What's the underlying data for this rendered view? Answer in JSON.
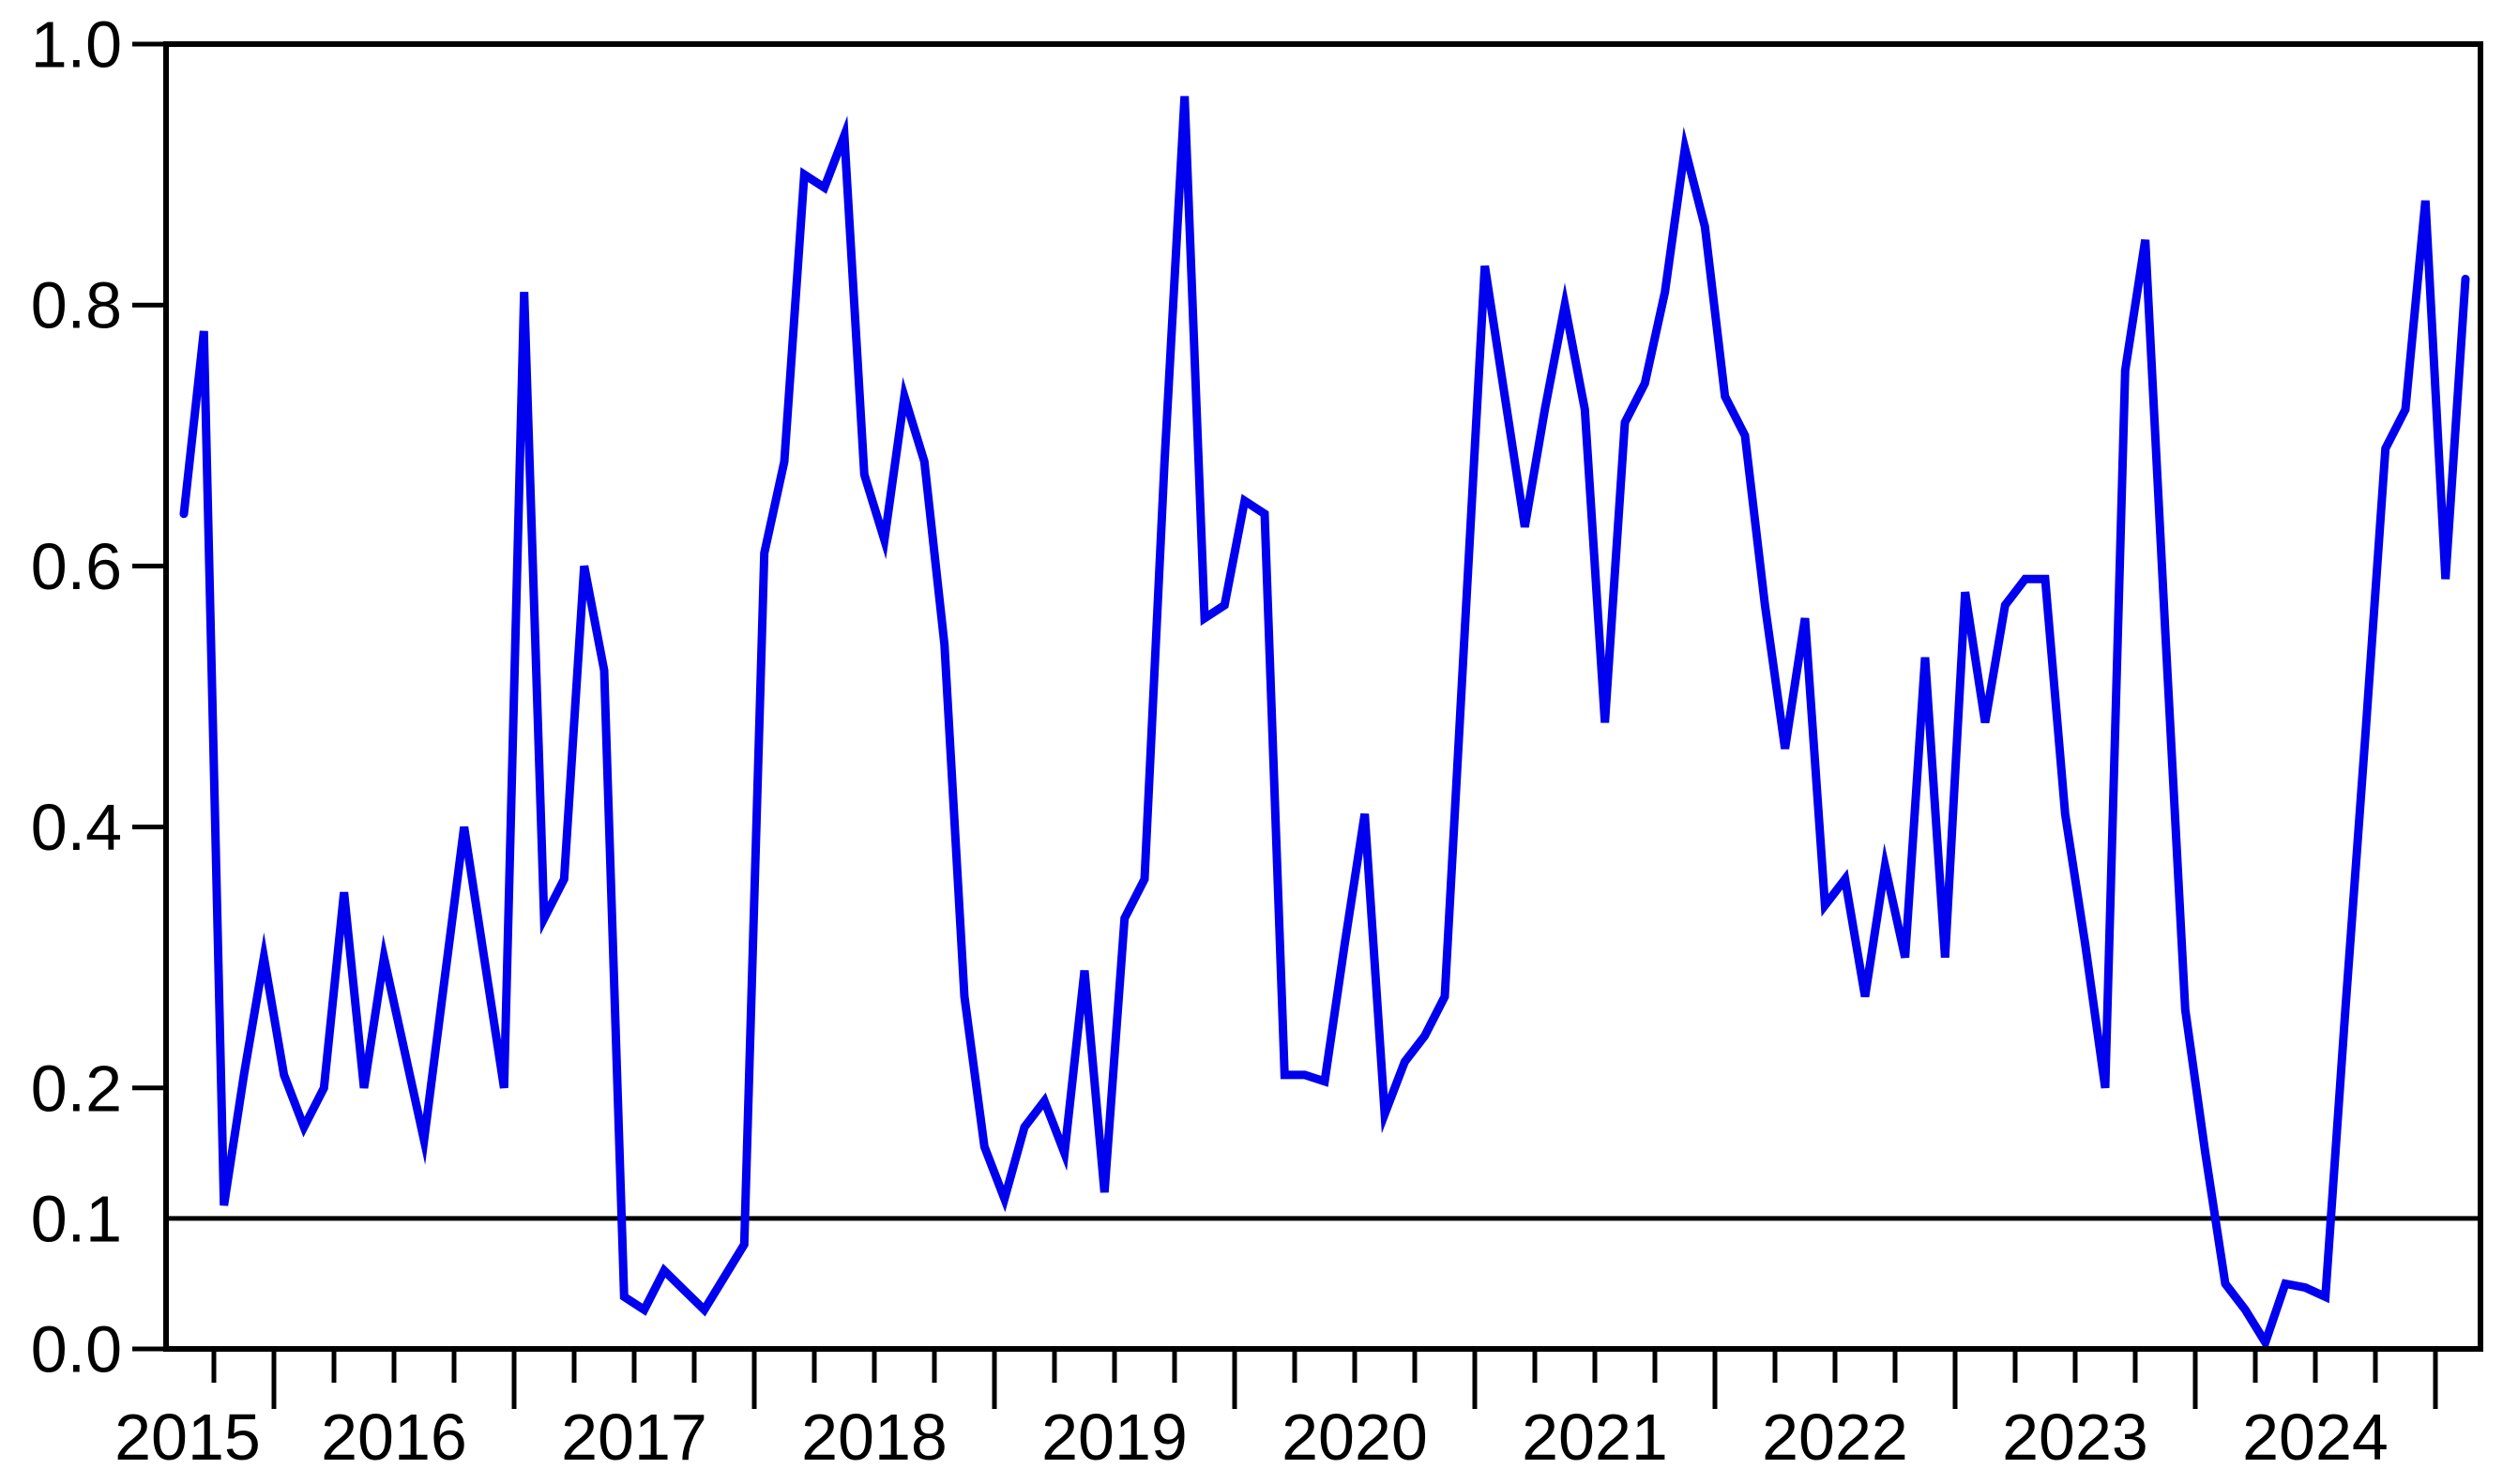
{
  "chart_data": {
    "type": "line",
    "title": "",
    "xlabel": "",
    "ylabel": "",
    "x_unit": "month",
    "x_start": "2015-08",
    "x_interval_months": 1,
    "x_year_labels": [
      "2015",
      "2016",
      "2017",
      "2018",
      "2019",
      "2020",
      "2021",
      "2022",
      "2023",
      "2024"
    ],
    "ylim": [
      0.0,
      1.0
    ],
    "grid": false,
    "legend": "none",
    "y_axis_ticks": [
      {
        "value": 1.0,
        "label": "1.0",
        "tick": true
      },
      {
        "value": 0.8,
        "label": "0.8",
        "tick": true
      },
      {
        "value": 0.6,
        "label": "0.6",
        "tick": true
      },
      {
        "value": 0.4,
        "label": "0.4",
        "tick": true
      },
      {
        "value": 0.2,
        "label": "0.2",
        "tick": true
      },
      {
        "value": 0.1,
        "label": "0.1",
        "tick": false
      },
      {
        "value": 0.0,
        "label": "0.0",
        "tick": true
      }
    ],
    "threshold_line": {
      "value": 0.1,
      "color": "#000000"
    },
    "series": [
      {
        "name": "blue-line",
        "color": "#0000ee",
        "values": [
          0.64,
          0.78,
          0.11,
          0.21,
          0.3,
          0.21,
          0.17,
          0.2,
          0.35,
          0.2,
          0.3,
          0.23,
          0.16,
          0.28,
          0.4,
          0.3,
          0.2,
          0.81,
          0.33,
          0.36,
          0.6,
          0.52,
          0.04,
          0.03,
          0.06,
          0.045,
          0.03,
          0.055,
          0.08,
          0.61,
          0.68,
          0.9,
          0.89,
          0.93,
          0.67,
          0.62,
          0.73,
          0.68,
          0.54,
          0.27,
          0.155,
          0.115,
          0.17,
          0.19,
          0.15,
          0.29,
          0.12,
          0.33,
          0.36,
          0.68,
          0.96,
          0.56,
          0.57,
          0.65,
          0.64,
          0.21,
          0.21,
          0.205,
          0.31,
          0.41,
          0.18,
          0.22,
          0.24,
          0.27,
          0.55,
          0.83,
          0.73,
          0.63,
          0.72,
          0.8,
          0.72,
          0.48,
          0.71,
          0.74,
          0.81,
          0.92,
          0.86,
          0.73,
          0.7,
          0.57,
          0.46,
          0.56,
          0.34,
          0.36,
          0.27,
          0.37,
          0.3,
          0.53,
          0.3,
          0.58,
          0.48,
          0.57,
          0.59,
          0.59,
          0.41,
          0.31,
          0.2,
          0.75,
          0.85,
          0.55,
          0.26,
          0.15,
          0.05,
          0.03,
          0.005,
          0.05,
          0.047,
          0.04,
          0.26,
          0.47,
          0.69,
          0.72,
          0.88,
          0.59,
          0.82
        ]
      }
    ],
    "axis_color": "#000000",
    "background_color": "#ffffff"
  }
}
